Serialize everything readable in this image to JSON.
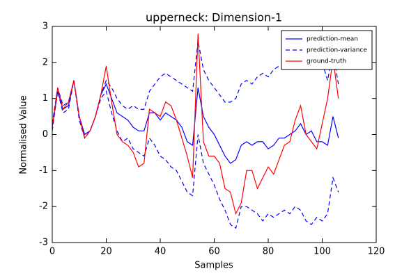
{
  "chart_data": {
    "type": "line",
    "title": "upperneck: Dimension-1",
    "x_label": "Samples",
    "y_label": "Normalised Value",
    "x": [
      0,
      2,
      4,
      6,
      8,
      10,
      12,
      14,
      16,
      18,
      20,
      22,
      24,
      26,
      28,
      30,
      32,
      34,
      36,
      38,
      40,
      42,
      44,
      46,
      48,
      50,
      52,
      54,
      56,
      58,
      60,
      62,
      64,
      66,
      68,
      70,
      72,
      74,
      76,
      78,
      80,
      82,
      84,
      86,
      88,
      90,
      92,
      94,
      96,
      98,
      100,
      102,
      104,
      106
    ],
    "series": [
      {
        "name": "prediction-mean",
        "color": "#0000ff",
        "dash": "solid",
        "values": [
          0.2,
          1.2,
          0.7,
          0.8,
          1.5,
          0.5,
          0.0,
          0.1,
          0.5,
          1.1,
          1.4,
          1.0,
          0.6,
          0.5,
          0.4,
          0.2,
          0.1,
          0.1,
          0.6,
          0.6,
          0.4,
          0.6,
          0.5,
          0.4,
          0.2,
          -0.2,
          -0.3,
          1.3,
          0.5,
          0.2,
          0.0,
          -0.3,
          -0.6,
          -0.8,
          -0.7,
          -0.3,
          -0.2,
          -0.3,
          -0.2,
          -0.2,
          -0.4,
          -0.3,
          -0.1,
          -0.1,
          0.0,
          0.1,
          0.3,
          0.0,
          0.1,
          -0.2,
          -0.2,
          -0.3,
          0.5,
          -0.1
        ]
      },
      {
        "name": "prediction-variance",
        "color": "#0000ff",
        "dash": "dashed",
        "upper": [
          0.3,
          1.3,
          0.8,
          0.9,
          1.5,
          0.5,
          0.0,
          0.1,
          0.5,
          1.1,
          1.5,
          1.3,
          1.0,
          0.8,
          0.7,
          0.8,
          0.7,
          0.7,
          1.2,
          1.4,
          1.6,
          1.7,
          1.6,
          1.5,
          1.4,
          1.3,
          1.2,
          2.6,
          1.8,
          1.5,
          1.3,
          1.1,
          0.9,
          0.9,
          1.0,
          1.4,
          1.5,
          1.4,
          1.6,
          1.7,
          1.6,
          1.8,
          1.9,
          1.9,
          2.0,
          2.2,
          2.2,
          2.0,
          2.1,
          1.9,
          2.0,
          1.5,
          2.3,
          1.4
        ],
        "lower": [
          0.1,
          1.2,
          0.6,
          0.7,
          1.5,
          0.4,
          -0.1,
          0.1,
          0.5,
          1.0,
          1.2,
          0.6,
          0.1,
          -0.2,
          -0.1,
          -0.4,
          -0.5,
          -0.6,
          -0.1,
          -0.3,
          -0.6,
          -0.7,
          -0.9,
          -1.0,
          -1.3,
          -1.6,
          -1.7,
          0.0,
          -0.8,
          -1.1,
          -1.4,
          -1.8,
          -2.1,
          -2.5,
          -2.6,
          -2.0,
          -2.0,
          -2.1,
          -2.2,
          -2.4,
          -2.2,
          -2.3,
          -2.2,
          -2.1,
          -2.2,
          -2.0,
          -2.1,
          -2.4,
          -2.5,
          -2.3,
          -2.4,
          -2.2,
          -1.2,
          -1.6
        ]
      },
      {
        "name": "ground-truth",
        "color": "#ff0000",
        "dash": "solid",
        "values": [
          0.2,
          1.3,
          0.7,
          0.9,
          1.5,
          0.5,
          -0.1,
          0.1,
          0.5,
          1.1,
          1.9,
          0.9,
          0.0,
          -0.2,
          -0.3,
          -0.5,
          -0.9,
          -0.8,
          0.7,
          0.6,
          0.5,
          0.9,
          0.8,
          0.4,
          -0.1,
          -0.6,
          -1.2,
          2.8,
          -0.2,
          -0.6,
          -0.6,
          -0.8,
          -1.5,
          -1.6,
          -2.2,
          -1.9,
          -1.0,
          -1.0,
          -1.5,
          -1.2,
          -0.9,
          -1.1,
          -0.7,
          -0.3,
          -0.2,
          0.4,
          0.8,
          0.0,
          -0.2,
          -0.4,
          0.3,
          1.0,
          2.1,
          1.0
        ]
      }
    ],
    "xlim": [
      0,
      120
    ],
    "xticks": [
      0,
      20,
      40,
      60,
      80,
      100,
      120
    ],
    "ylim": [
      -3,
      3
    ],
    "yticks": [
      -3,
      -2,
      -1,
      0,
      1,
      2,
      3
    ],
    "legend": "upper right"
  }
}
